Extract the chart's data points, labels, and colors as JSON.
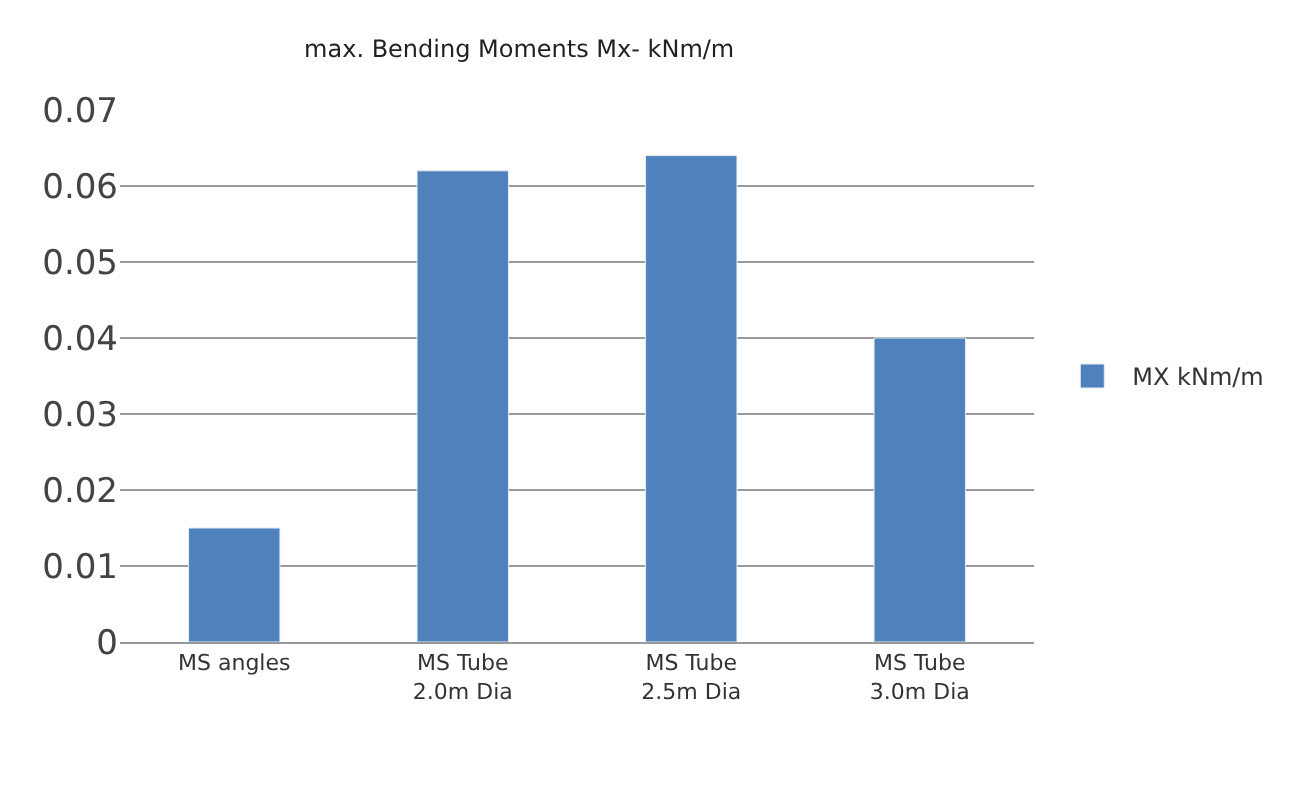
{
  "chart_data": {
    "type": "bar",
    "title": "max. Bending Moments Mx- kNm/m",
    "categories": [
      "MS angles",
      "MS Tube 2.0m Dia",
      "MS Tube 2.5m Dia",
      "MS Tube 3.0m Dia"
    ],
    "series": [
      {
        "name": "MX kNm/m",
        "color": "#4f81bd",
        "values": [
          0.015,
          0.062,
          0.064,
          0.04
        ]
      }
    ],
    "ylim": [
      0,
      0.07
    ],
    "yticks": [
      0,
      0.01,
      0.02,
      0.03,
      0.04,
      0.05,
      0.06,
      0.07
    ],
    "grid": "y",
    "legend": "right"
  }
}
